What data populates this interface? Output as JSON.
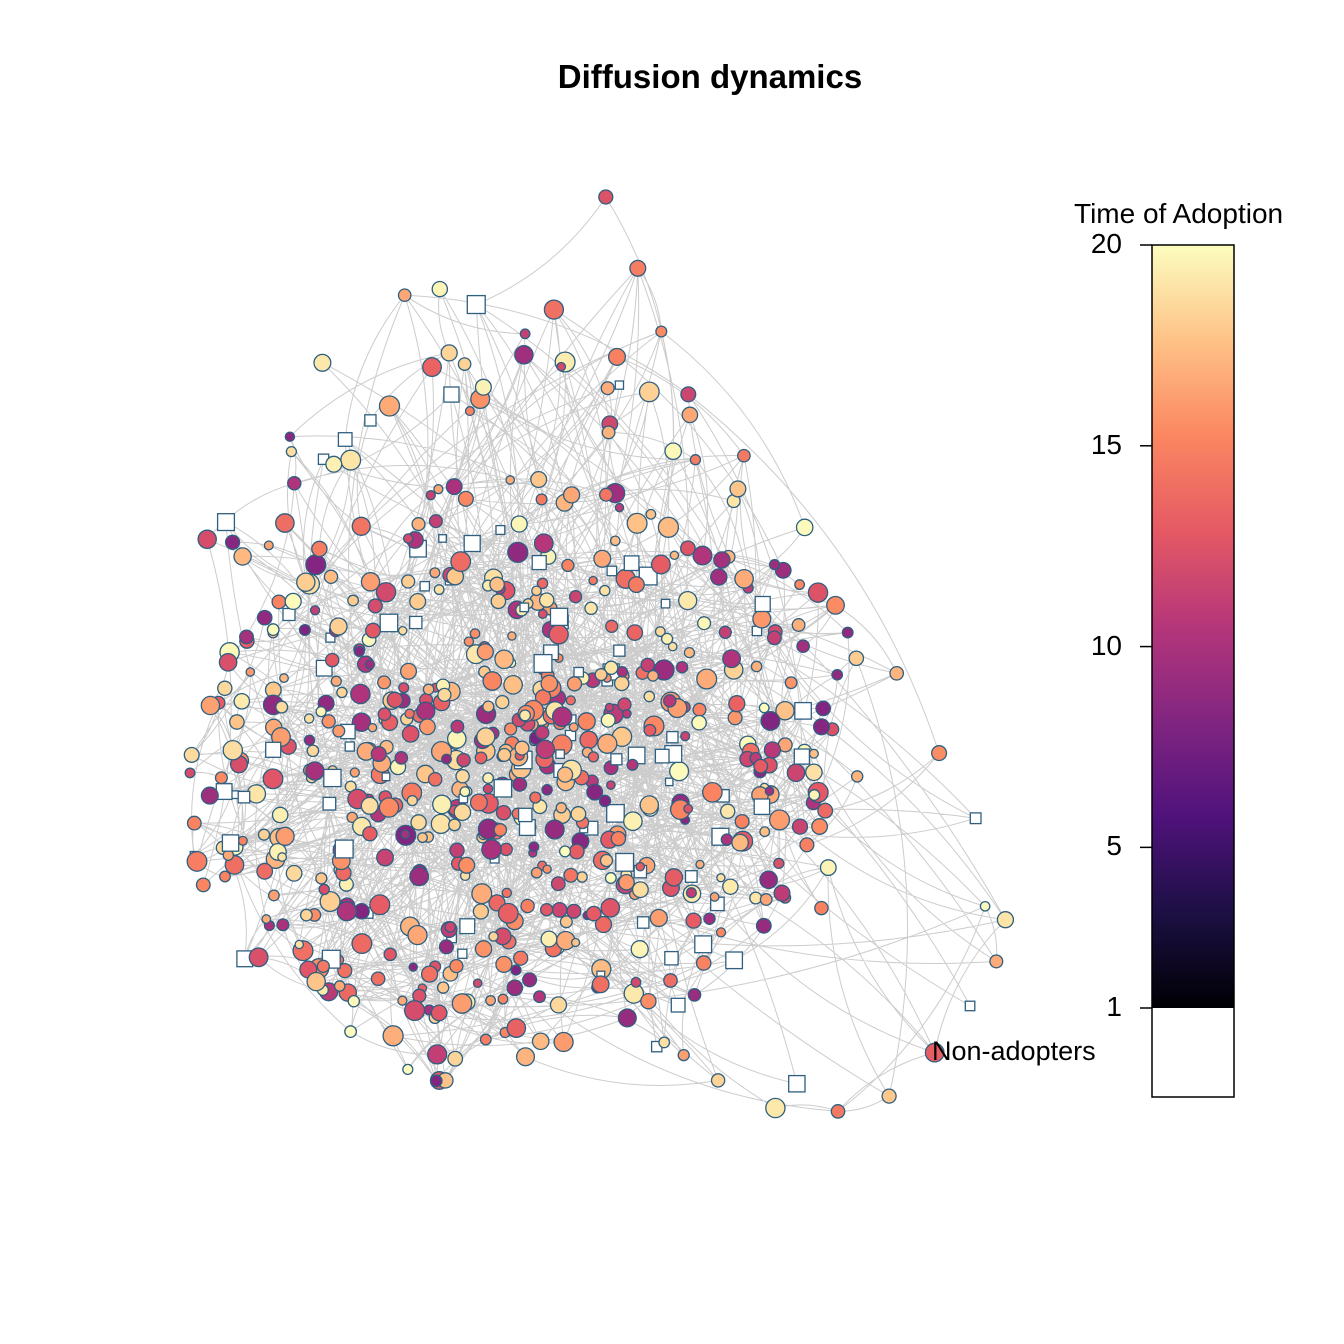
{
  "title": "Diffusion dynamics",
  "legend": {
    "title": "Time of Adoption",
    "non_adopters_label": "Non-adopters",
    "ticks": [
      "1",
      "5",
      "10",
      "15",
      "20"
    ],
    "tick_values": [
      1,
      5,
      10,
      15,
      20
    ],
    "range": [
      1,
      20
    ],
    "colors": [
      "#000004",
      "#1c1044",
      "#4f127b",
      "#812581",
      "#b5367a",
      "#e55964",
      "#fb8761",
      "#fec287",
      "#fcfdbf"
    ],
    "non_adopter_color": "#ffffff"
  },
  "network": {
    "node_border_color": "#2e5f80",
    "edge_color": "#bbbbbb",
    "adopter_shape": "circle",
    "non_adopter_shape": "square"
  }
}
